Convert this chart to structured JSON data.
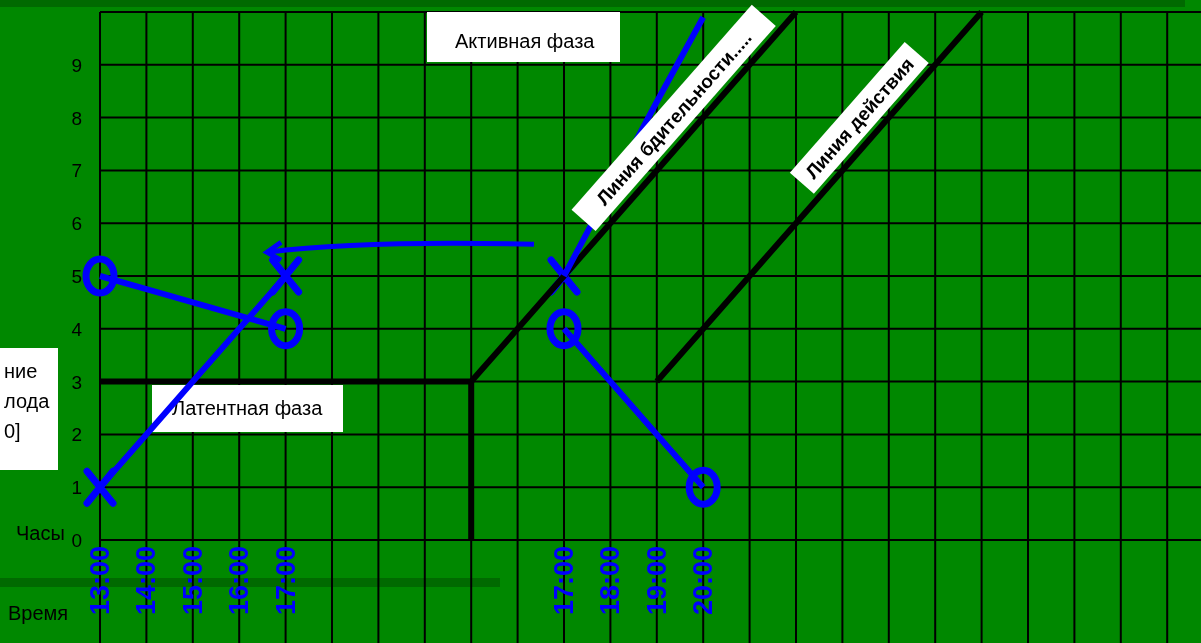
{
  "chart_data": {
    "type": "line",
    "xlabel": "Часы",
    "ylabel": "ние\nлода\n0]",
    "annotations": [
      "Активная фаза",
      "Латентная фаза",
      "Время"
    ],
    "categories": [
      "13:00",
      "14:00",
      "15:00",
      "16:00",
      "17:00",
      null,
      null,
      null,
      null,
      null,
      "17:00",
      "18:00",
      "19:00",
      "20:00",
      null,
      null,
      null,
      null,
      null,
      null,
      null,
      null,
      null,
      null
    ],
    "ylim": [
      0,
      10
    ],
    "yticks": [
      0,
      1,
      2,
      3,
      4,
      5,
      6,
      7,
      8,
      9,
      {
        "value": 10,
        "label": null
      }
    ],
    "grid": true,
    "series": [
      {
        "name": "Линия бдительности.....",
        "type": "line",
        "color": "#000000",
        "values": [
          3,
          3,
          3,
          3,
          3,
          3,
          3,
          3,
          3,
          4,
          5,
          6,
          7,
          8,
          9,
          10,
          null,
          null,
          null,
          null,
          null,
          null,
          null,
          null
        ],
        "marker": "none"
      },
      {
        "name": "Линия действия",
        "type": "line",
        "color": "#000000",
        "values": [
          null,
          null,
          null,
          null,
          null,
          null,
          null,
          null,
          null,
          null,
          null,
          null,
          3,
          4,
          5,
          6,
          7,
          8,
          9,
          10,
          null,
          null,
          null,
          null
        ],
        "marker": "none"
      },
      {
        "type": "line",
        "color": "#0000ff",
        "values": [
          1,
          2,
          3,
          4,
          5,
          null,
          null,
          null,
          null,
          null,
          null,
          null,
          null,
          null,
          null,
          null,
          null,
          null,
          null,
          null,
          null,
          null,
          null,
          null
        ],
        "marker": "none"
      },
      {
        "type": "line",
        "color": "#0000ff",
        "values": [
          null,
          null,
          null,
          null,
          null,
          null,
          null,
          null,
          null,
          null,
          5,
          null,
          8.3,
          9.9,
          null,
          null,
          null,
          null,
          null,
          null,
          null,
          null,
          null,
          null
        ],
        "marker": "none"
      },
      {
        "type": "line",
        "color": "#0000ff",
        "values": [
          5,
          4.75,
          4.5,
          4.25,
          4,
          null,
          null,
          null,
          null,
          null,
          null,
          null,
          null,
          null,
          null,
          null,
          null,
          null,
          null,
          null,
          null,
          null,
          null,
          null
        ],
        "marker": "none"
      },
      {
        "type": "line",
        "color": "#0000ff",
        "values": [
          null,
          null,
          null,
          null,
          null,
          null,
          null,
          null,
          null,
          null,
          4,
          3,
          2,
          1,
          null,
          null,
          null,
          null,
          null,
          null,
          null,
          null,
          null,
          null
        ],
        "marker": "none"
      },
      {
        "type": "scatter",
        "color": "#0000ff",
        "values": [
          1,
          null,
          null,
          null,
          5,
          null,
          null,
          null,
          null,
          null,
          5,
          null,
          null,
          null,
          null,
          null,
          null,
          null,
          null,
          null,
          null,
          null,
          null,
          null
        ],
        "marker": "cross"
      },
      {
        "type": "scatter",
        "color": "#0000ff",
        "values": [
          5,
          null,
          null,
          null,
          4,
          null,
          null,
          null,
          null,
          null,
          4,
          null,
          null,
          1,
          null,
          null,
          null,
          null,
          null,
          null,
          null,
          null,
          null,
          null
        ],
        "marker": "circle"
      }
    ]
  }
}
